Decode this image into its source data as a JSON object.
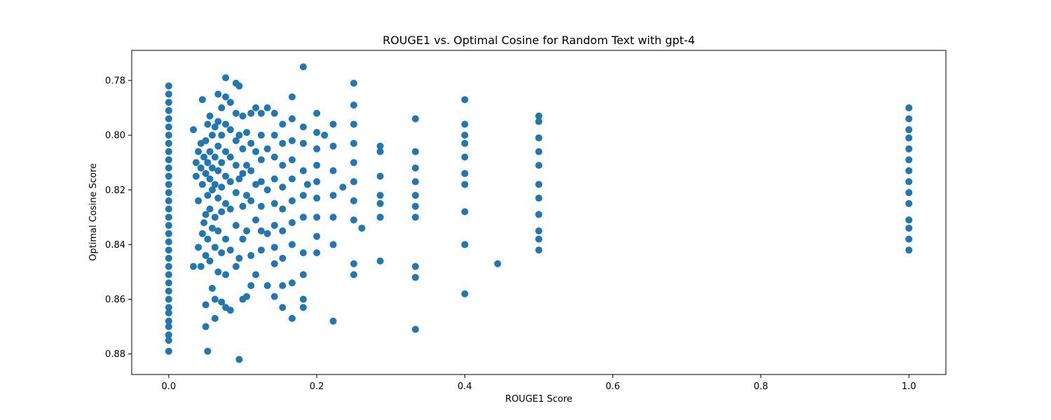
{
  "chart_data": {
    "type": "scatter",
    "title": "ROUGE1 vs. Optimal Cosine for Random Text with gpt-4",
    "xlabel": "ROUGE1 Score",
    "ylabel": "Optimal Cosine Score",
    "xlim": [
      -0.05,
      1.05
    ],
    "ylim": [
      0.8875,
      0.769
    ],
    "y_inverted": true,
    "grid": false,
    "legend": "none",
    "x_ticks": [
      0.0,
      0.2,
      0.4,
      0.6,
      0.8,
      1.0
    ],
    "x_tick_labels": [
      "0.0",
      "0.2",
      "0.4",
      "0.6",
      "0.8",
      "1.0"
    ],
    "y_ticks": [
      0.78,
      0.8,
      0.82,
      0.84,
      0.86,
      0.88
    ],
    "y_tick_labels": [
      "0.78",
      "0.80",
      "0.82",
      "0.84",
      "0.86",
      "0.88"
    ],
    "marker_color": "#1f77b4",
    "series": [
      {
        "points": [
          [
            0.0,
            0.782
          ],
          [
            0.0,
            0.785
          ],
          [
            0.0,
            0.788
          ],
          [
            0.0,
            0.791
          ],
          [
            0.0,
            0.794
          ],
          [
            0.0,
            0.797
          ],
          [
            0.0,
            0.8
          ],
          [
            0.0,
            0.803
          ],
          [
            0.0,
            0.806
          ],
          [
            0.0,
            0.809
          ],
          [
            0.0,
            0.812
          ],
          [
            0.0,
            0.815
          ],
          [
            0.0,
            0.818
          ],
          [
            0.0,
            0.821
          ],
          [
            0.0,
            0.824
          ],
          [
            0.0,
            0.827
          ],
          [
            0.0,
            0.83
          ],
          [
            0.0,
            0.833
          ],
          [
            0.0,
            0.836
          ],
          [
            0.0,
            0.839
          ],
          [
            0.0,
            0.842
          ],
          [
            0.0,
            0.845
          ],
          [
            0.0,
            0.848
          ],
          [
            0.0,
            0.851
          ],
          [
            0.0,
            0.854
          ],
          [
            0.0,
            0.857
          ],
          [
            0.0,
            0.86
          ],
          [
            0.0,
            0.863
          ],
          [
            0.0,
            0.865
          ],
          [
            0.0,
            0.868
          ],
          [
            0.0,
            0.87
          ],
          [
            0.0,
            0.873
          ],
          [
            0.0,
            0.875
          ],
          [
            0.0,
            0.879
          ],
          [
            0.0333,
            0.798
          ],
          [
            0.0333,
            0.848
          ],
          [
            0.037,
            0.81
          ],
          [
            0.037,
            0.815
          ],
          [
            0.04,
            0.806
          ],
          [
            0.04,
            0.824
          ],
          [
            0.04,
            0.841
          ],
          [
            0.0435,
            0.803
          ],
          [
            0.0435,
            0.812
          ],
          [
            0.0435,
            0.848
          ],
          [
            0.0455,
            0.787
          ],
          [
            0.0455,
            0.818
          ],
          [
            0.0455,
            0.836
          ],
          [
            0.0476,
            0.808
          ],
          [
            0.0476,
            0.832
          ],
          [
            0.05,
            0.802
          ],
          [
            0.05,
            0.814
          ],
          [
            0.05,
            0.829
          ],
          [
            0.05,
            0.844
          ],
          [
            0.05,
            0.862
          ],
          [
            0.05,
            0.87
          ],
          [
            0.0526,
            0.796
          ],
          [
            0.0526,
            0.81
          ],
          [
            0.0526,
            0.822
          ],
          [
            0.0526,
            0.838
          ],
          [
            0.0526,
            0.879
          ],
          [
            0.0556,
            0.793
          ],
          [
            0.0556,
            0.806
          ],
          [
            0.0556,
            0.816
          ],
          [
            0.0556,
            0.827
          ],
          [
            0.0556,
            0.846
          ],
          [
            0.0588,
            0.8
          ],
          [
            0.0588,
            0.812
          ],
          [
            0.0588,
            0.82
          ],
          [
            0.0588,
            0.834
          ],
          [
            0.0588,
            0.856
          ],
          [
            0.0625,
            0.797
          ],
          [
            0.0625,
            0.808
          ],
          [
            0.0625,
            0.818
          ],
          [
            0.0625,
            0.83
          ],
          [
            0.0625,
            0.841
          ],
          [
            0.0625,
            0.86
          ],
          [
            0.0625,
            0.867
          ],
          [
            0.0667,
            0.785
          ],
          [
            0.0667,
            0.795
          ],
          [
            0.0667,
            0.804
          ],
          [
            0.0667,
            0.813
          ],
          [
            0.0667,
            0.823
          ],
          [
            0.0667,
            0.835
          ],
          [
            0.0667,
            0.85
          ],
          [
            0.0714,
            0.79
          ],
          [
            0.0714,
            0.8
          ],
          [
            0.0714,
            0.81
          ],
          [
            0.0714,
            0.819
          ],
          [
            0.0714,
            0.828
          ],
          [
            0.0714,
            0.843
          ],
          [
            0.0714,
            0.861
          ],
          [
            0.0769,
            0.779
          ],
          [
            0.0769,
            0.786
          ],
          [
            0.0769,
            0.796
          ],
          [
            0.0769,
            0.806
          ],
          [
            0.0769,
            0.815
          ],
          [
            0.0769,
            0.825
          ],
          [
            0.0769,
            0.838
          ],
          [
            0.0769,
            0.851
          ],
          [
            0.0769,
            0.863
          ],
          [
            0.0833,
            0.788
          ],
          [
            0.0833,
            0.798
          ],
          [
            0.0833,
            0.808
          ],
          [
            0.0833,
            0.817
          ],
          [
            0.0833,
            0.827
          ],
          [
            0.0833,
            0.842
          ],
          [
            0.0833,
            0.864
          ],
          [
            0.0909,
            0.781
          ],
          [
            0.0909,
            0.792
          ],
          [
            0.0909,
            0.802
          ],
          [
            0.0909,
            0.811
          ],
          [
            0.0909,
            0.821
          ],
          [
            0.0909,
            0.833
          ],
          [
            0.0909,
            0.848
          ],
          [
            0.0952,
            0.782
          ],
          [
            0.0952,
            0.8
          ],
          [
            0.0952,
            0.816
          ],
          [
            0.0952,
            0.845
          ],
          [
            0.0952,
            0.882
          ],
          [
            0.1,
            0.793
          ],
          [
            0.1,
            0.805
          ],
          [
            0.1,
            0.814
          ],
          [
            0.1,
            0.826
          ],
          [
            0.1,
            0.838
          ],
          [
            0.1,
            0.86
          ],
          [
            0.1053,
            0.799
          ],
          [
            0.1053,
            0.811
          ],
          [
            0.1053,
            0.822
          ],
          [
            0.1053,
            0.835
          ],
          [
            0.1053,
            0.859
          ],
          [
            0.1111,
            0.792
          ],
          [
            0.1111,
            0.803
          ],
          [
            0.1111,
            0.813
          ],
          [
            0.1111,
            0.824
          ],
          [
            0.1111,
            0.844
          ],
          [
            0.1111,
            0.855
          ],
          [
            0.1176,
            0.79
          ],
          [
            0.1176,
            0.806
          ],
          [
            0.1176,
            0.818
          ],
          [
            0.1176,
            0.831
          ],
          [
            0.1176,
            0.851
          ],
          [
            0.125,
            0.792
          ],
          [
            0.125,
            0.8
          ],
          [
            0.125,
            0.809
          ],
          [
            0.125,
            0.817
          ],
          [
            0.125,
            0.826
          ],
          [
            0.125,
            0.835
          ],
          [
            0.125,
            0.842
          ],
          [
            0.1333,
            0.79
          ],
          [
            0.1333,
            0.805
          ],
          [
            0.1333,
            0.82
          ],
          [
            0.1333,
            0.836
          ],
          [
            0.1333,
            0.855
          ],
          [
            0.1429,
            0.792
          ],
          [
            0.1429,
            0.8
          ],
          [
            0.1429,
            0.808
          ],
          [
            0.1429,
            0.816
          ],
          [
            0.1429,
            0.825
          ],
          [
            0.1429,
            0.833
          ],
          [
            0.1429,
            0.841
          ],
          [
            0.1429,
            0.847
          ],
          [
            0.1429,
            0.859
          ],
          [
            0.1538,
            0.796
          ],
          [
            0.1538,
            0.803
          ],
          [
            0.1538,
            0.811
          ],
          [
            0.1538,
            0.819
          ],
          [
            0.1538,
            0.827
          ],
          [
            0.1538,
            0.835
          ],
          [
            0.1538,
            0.845
          ],
          [
            0.1538,
            0.855
          ],
          [
            0.1538,
            0.863
          ],
          [
            0.1667,
            0.786
          ],
          [
            0.1667,
            0.794
          ],
          [
            0.1667,
            0.802
          ],
          [
            0.1667,
            0.809
          ],
          [
            0.1667,
            0.816
          ],
          [
            0.1667,
            0.824
          ],
          [
            0.1667,
            0.832
          ],
          [
            0.1667,
            0.84
          ],
          [
            0.1667,
            0.854
          ],
          [
            0.1667,
            0.867
          ],
          [
            0.1818,
            0.775
          ],
          [
            0.1818,
            0.797
          ],
          [
            0.1818,
            0.803
          ],
          [
            0.1818,
            0.813
          ],
          [
            0.1818,
            0.822
          ],
          [
            0.1818,
            0.83
          ],
          [
            0.1818,
            0.843
          ],
          [
            0.1818,
            0.851
          ],
          [
            0.1818,
            0.86
          ],
          [
            0.1818,
            0.863
          ],
          [
            0.1875,
            0.818
          ],
          [
            0.2,
            0.792
          ],
          [
            0.2,
            0.799
          ],
          [
            0.2,
            0.805
          ],
          [
            0.2,
            0.811
          ],
          [
            0.2,
            0.817
          ],
          [
            0.2,
            0.823
          ],
          [
            0.2,
            0.83
          ],
          [
            0.2,
            0.837
          ],
          [
            0.2,
            0.843
          ],
          [
            0.2105,
            0.8
          ],
          [
            0.2222,
            0.796
          ],
          [
            0.2222,
            0.804
          ],
          [
            0.2222,
            0.813
          ],
          [
            0.2222,
            0.822
          ],
          [
            0.2222,
            0.83
          ],
          [
            0.2222,
            0.84
          ],
          [
            0.2222,
            0.868
          ],
          [
            0.2353,
            0.819
          ],
          [
            0.25,
            0.781
          ],
          [
            0.25,
            0.789
          ],
          [
            0.25,
            0.796
          ],
          [
            0.25,
            0.803
          ],
          [
            0.25,
            0.81
          ],
          [
            0.25,
            0.817
          ],
          [
            0.25,
            0.824
          ],
          [
            0.25,
            0.831
          ],
          [
            0.25,
            0.847
          ],
          [
            0.25,
            0.851
          ],
          [
            0.2609,
            0.834
          ],
          [
            0.2857,
            0.804
          ],
          [
            0.2857,
            0.806
          ],
          [
            0.2857,
            0.815
          ],
          [
            0.2857,
            0.822
          ],
          [
            0.2857,
            0.825
          ],
          [
            0.2857,
            0.83
          ],
          [
            0.2857,
            0.846
          ],
          [
            0.3333,
            0.794
          ],
          [
            0.3333,
            0.806
          ],
          [
            0.3333,
            0.812
          ],
          [
            0.3333,
            0.817
          ],
          [
            0.3333,
            0.822
          ],
          [
            0.3333,
            0.826
          ],
          [
            0.3333,
            0.83
          ],
          [
            0.3333,
            0.848
          ],
          [
            0.3333,
            0.852
          ],
          [
            0.3333,
            0.871
          ],
          [
            0.4,
            0.787
          ],
          [
            0.4,
            0.796
          ],
          [
            0.4,
            0.8
          ],
          [
            0.4,
            0.803
          ],
          [
            0.4,
            0.808
          ],
          [
            0.4,
            0.814
          ],
          [
            0.4,
            0.818
          ],
          [
            0.4,
            0.828
          ],
          [
            0.4,
            0.84
          ],
          [
            0.4,
            0.858
          ],
          [
            0.4444,
            0.847
          ],
          [
            0.5,
            0.793
          ],
          [
            0.5,
            0.795
          ],
          [
            0.5,
            0.801
          ],
          [
            0.5,
            0.806
          ],
          [
            0.5,
            0.811
          ],
          [
            0.5,
            0.818
          ],
          [
            0.5,
            0.823
          ],
          [
            0.5,
            0.829
          ],
          [
            0.5,
            0.835
          ],
          [
            0.5,
            0.838
          ],
          [
            0.5,
            0.842
          ],
          [
            1.0,
            0.79
          ],
          [
            1.0,
            0.794
          ],
          [
            1.0,
            0.798
          ],
          [
            1.0,
            0.801
          ],
          [
            1.0,
            0.805
          ],
          [
            1.0,
            0.809
          ],
          [
            1.0,
            0.813
          ],
          [
            1.0,
            0.817
          ],
          [
            1.0,
            0.821
          ],
          [
            1.0,
            0.825
          ],
          [
            1.0,
            0.831
          ],
          [
            1.0,
            0.834
          ],
          [
            1.0,
            0.838
          ],
          [
            1.0,
            0.842
          ]
        ]
      }
    ]
  }
}
